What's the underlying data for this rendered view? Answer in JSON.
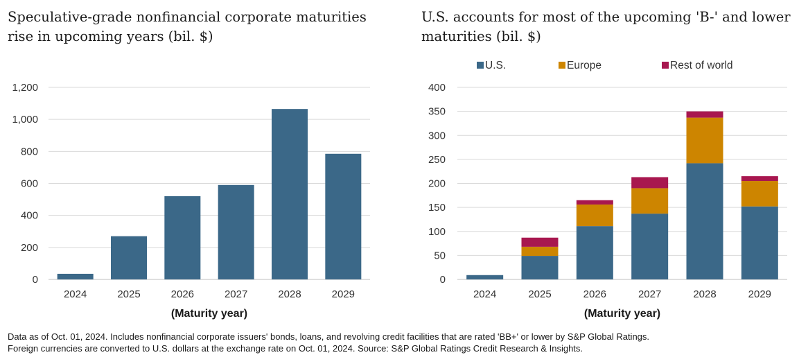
{
  "colors": {
    "us": "#3b6888",
    "europe": "#cd8500",
    "rest": "#a8174f",
    "grid": "#d9d9d9",
    "axis": "#bfbfbf"
  },
  "chart_data": [
    {
      "type": "bar",
      "title": "Speculative-grade nonfinancial corporate maturities rise in upcoming years (bil. $)",
      "xlabel": "(Maturity year)",
      "ylabel": "",
      "categories": [
        "2024",
        "2025",
        "2026",
        "2027",
        "2028",
        "2029"
      ],
      "values": [
        35,
        270,
        520,
        590,
        1065,
        785
      ],
      "ylim": [
        0,
        1200
      ],
      "yticks": [
        0,
        200,
        400,
        600,
        800,
        1000,
        1200
      ],
      "ytick_labels": [
        "0",
        "200",
        "400",
        "600",
        "800",
        "1,000",
        "1,200"
      ],
      "grid": true
    },
    {
      "type": "bar",
      "stacked": true,
      "title": "U.S. accounts for most of the upcoming 'B-' and lower maturities (bil. $)",
      "xlabel": "(Maturity year)",
      "ylabel": "",
      "categories": [
        "2024",
        "2025",
        "2026",
        "2027",
        "2028",
        "2029"
      ],
      "series": [
        {
          "name": "U.S.",
          "values": [
            9,
            49,
            111,
            137,
            242,
            152
          ]
        },
        {
          "name": "Europe",
          "values": [
            0,
            19,
            45,
            53,
            95,
            53
          ]
        },
        {
          "name": "Rest of world",
          "values": [
            0,
            19,
            9,
            23,
            13,
            10
          ]
        }
      ],
      "ylim": [
        0,
        400
      ],
      "yticks": [
        0,
        50,
        100,
        150,
        200,
        250,
        300,
        350,
        400
      ],
      "ytick_labels": [
        "0",
        "50",
        "100",
        "150",
        "200",
        "250",
        "300",
        "350",
        "400"
      ],
      "legend": "top",
      "grid": true
    }
  ],
  "footnote": {
    "line1": "Data as of Oct. 01, 2024. Includes nonfinancial corporate issuers' bonds, loans, and revolving credit facilities that are rated 'BB+' or lower by S&P Global Ratings.",
    "line2": "Foreign currencies are converted to U.S. dollars at the exchange rate on Oct. 01, 2024. Source: S&P Global Ratings Credit Research & Insights."
  }
}
